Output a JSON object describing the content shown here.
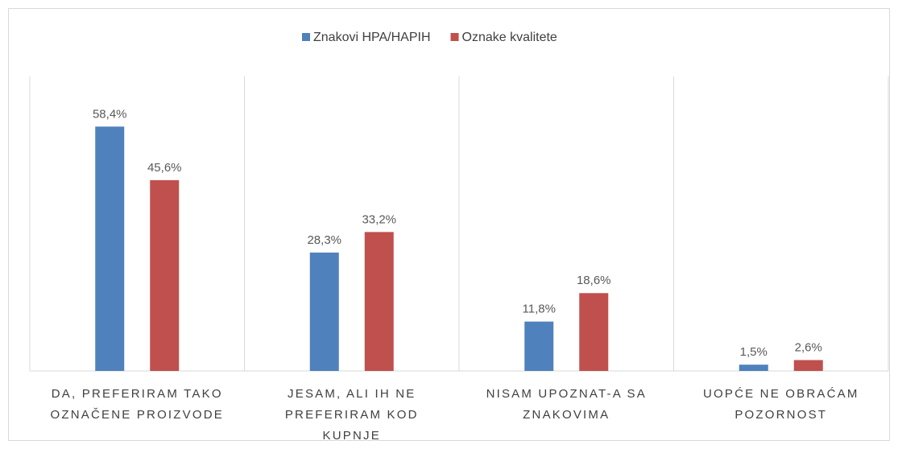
{
  "chart_data": {
    "type": "bar",
    "categories": [
      "DA, PREFERIRAM TAKO OZNAČENE PROIZVODE",
      "JESAM, ALI IH NE PREFERIRAM KOD KUPNJE",
      "NISAM UPOZNAT-A SA ZNAKOVIMA",
      "UOPĆE NE OBRAĆAM POZORNOST"
    ],
    "series": [
      {
        "name": "Znakovi HPA/HAPIH",
        "color": "#4f81bd",
        "values": [
          58.4,
          28.3,
          11.8,
          1.5
        ],
        "value_labels": [
          "58,4%",
          "28,3%",
          "11,8%",
          "1,5%"
        ]
      },
      {
        "name": "Oznake kvalitete",
        "color": "#c0504d",
        "values": [
          45.6,
          33.2,
          18.6,
          2.6
        ],
        "value_labels": [
          "45,6%",
          "33,2%",
          "18,6%",
          "2,6%"
        ]
      }
    ],
    "legend": "top"
  }
}
